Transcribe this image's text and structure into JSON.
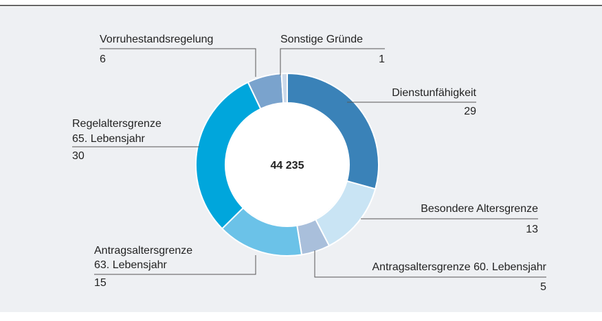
{
  "chart_data": {
    "type": "pie",
    "center_label": "44 235",
    "categories": [
      [
        "Dienstunfähigkeit"
      ],
      [
        "Besondere Altersgrenze"
      ],
      [
        "Antragsaltersgrenze 60. Lebensjahr"
      ],
      [
        "Antragsaltersgrenze",
        "63. Lebensjahr"
      ],
      [
        "Regelaltersgrenze",
        "65. Lebensjahr"
      ],
      [
        "Vorruhestandsregelung"
      ],
      [
        "Sonstige Gründe"
      ]
    ],
    "values": [
      29,
      13,
      5,
      15,
      30,
      6,
      1
    ],
    "colors": [
      "#3a82b8",
      "#c9e4f4",
      "#a9bfdb",
      "#6bc2e8",
      "#00a6dc",
      "#7aa3cd",
      "#ccd9ea"
    ]
  }
}
